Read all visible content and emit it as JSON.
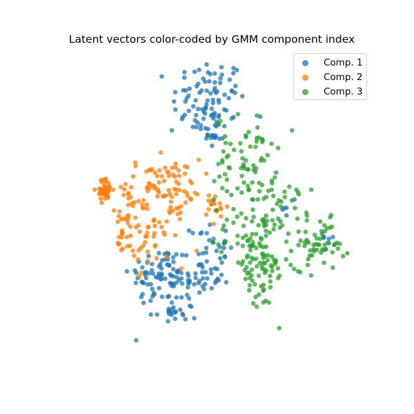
{
  "chart_data": {
    "type": "scatter",
    "title": "Latent vectors color-coded by GMM component index",
    "xlabel": "",
    "ylabel": "",
    "axes_visible": false,
    "grid": false,
    "legend_position": "top-right",
    "xlim": [
      0,
      100
    ],
    "ylim": [
      0,
      100
    ],
    "series": [
      {
        "name": "Comp. 1",
        "color": "#1f77b4",
        "clusters": [
          {
            "cx": 49,
            "cy": 84,
            "sx": 6,
            "sy": 7,
            "n": 95
          },
          {
            "cx": 49,
            "cy": 73,
            "sx": 3,
            "sy": 3,
            "n": 12
          },
          {
            "cx": 33,
            "cy": 27,
            "sx": 5,
            "sy": 5,
            "n": 75
          },
          {
            "cx": 46,
            "cy": 27,
            "sx": 5,
            "sy": 5,
            "n": 55
          },
          {
            "cx": 49,
            "cy": 37,
            "sx": 3,
            "sy": 4,
            "n": 18
          },
          {
            "cx": 37,
            "cy": 15,
            "sx": 4,
            "sy": 2,
            "n": 20
          },
          {
            "cx": 76,
            "cy": 49,
            "sx": 1.5,
            "sy": 3,
            "n": 5
          },
          {
            "cx": 89,
            "cy": 40,
            "sx": 1.5,
            "sy": 1.5,
            "n": 6
          }
        ]
      },
      {
        "name": "Comp. 2",
        "color": "#ff7f0e",
        "clusters": [
          {
            "cx": 15,
            "cy": 55,
            "sx": 1.3,
            "sy": 1.8,
            "n": 45
          },
          {
            "cx": 34,
            "cy": 57,
            "sx": 6,
            "sy": 4,
            "n": 70
          },
          {
            "cx": 31,
            "cy": 42,
            "sx": 5,
            "sy": 6,
            "n": 60
          },
          {
            "cx": 22,
            "cy": 43,
            "sx": 2.5,
            "sy": 7,
            "n": 30
          },
          {
            "cx": 51,
            "cy": 49,
            "sx": 2,
            "sy": 3,
            "n": 18
          },
          {
            "cx": 20,
            "cy": 48,
            "sx": 0.1,
            "sy": 0.1,
            "n": 1
          }
        ]
      },
      {
        "name": "Comp. 3",
        "color": "#2ca02c",
        "clusters": [
          {
            "cx": 61,
            "cy": 65,
            "sx": 5,
            "sy": 7,
            "n": 70
          },
          {
            "cx": 68,
            "cy": 44,
            "sx": 7,
            "sy": 7,
            "n": 95
          },
          {
            "cx": 65,
            "cy": 28,
            "sx": 5,
            "sy": 6,
            "n": 65
          },
          {
            "cx": 85,
            "cy": 37,
            "sx": 4,
            "sy": 4,
            "n": 50
          }
        ]
      }
    ]
  }
}
